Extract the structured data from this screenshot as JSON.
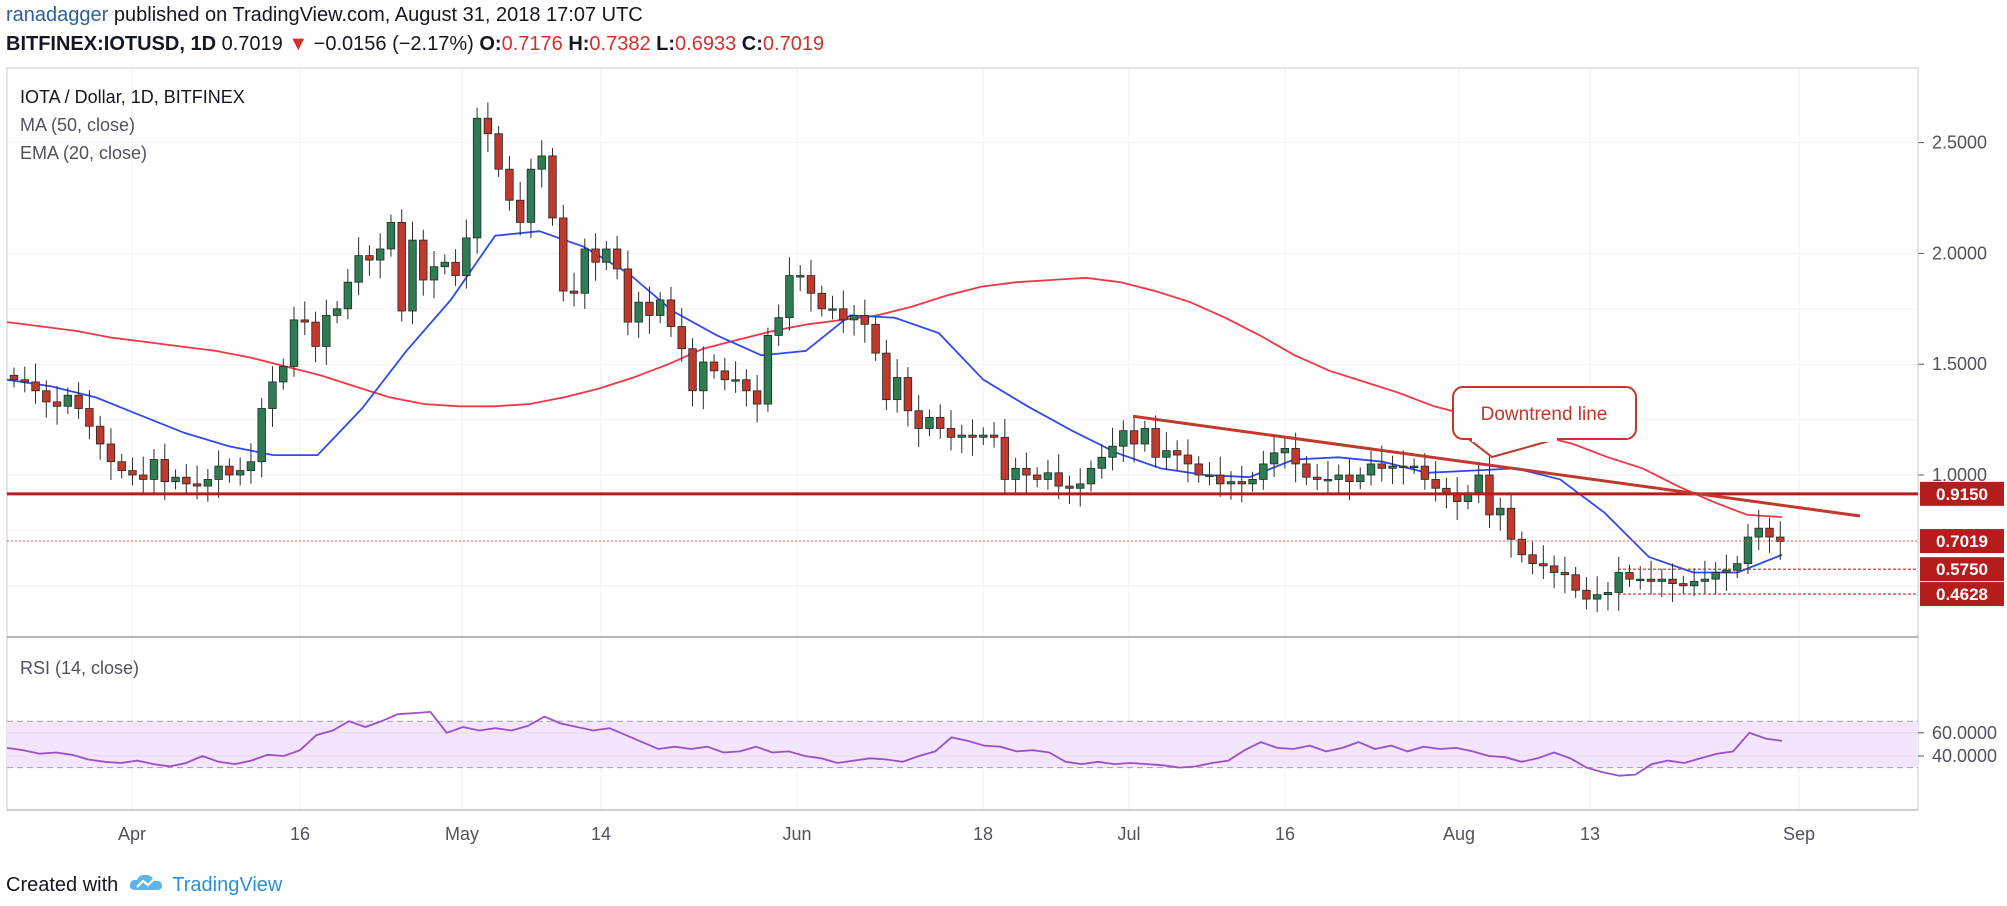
{
  "header": {
    "author": "ranadagger",
    "published_text": "published on TradingView.com, August 31, 2018 17:07 UTC",
    "symbol": "BITFINEX:IOTUSD, 1D",
    "last": "0.7019",
    "change": "−0.0156 (−2.17%)",
    "o_label": "O:",
    "o": "0.7176",
    "h_label": "H:",
    "h": "0.7382",
    "l_label": "L:",
    "l": "0.6933",
    "c_label": "C:",
    "c": "0.7019"
  },
  "legend": {
    "title": "IOTA / Dollar, 1D, BITFINEX",
    "ma": "MA (50, close)",
    "ema": "EMA (20, close)",
    "rsi": "RSI (14, close)"
  },
  "annotation": {
    "downtrend_label": "Downtrend line"
  },
  "footer": {
    "created_with": "Created with",
    "brand": "TradingView"
  },
  "colors": {
    "up": "#2e7d52",
    "down": "#c0392b",
    "ma50": "#f23645",
    "ema20": "#3049f2",
    "rsi": "#9c4fc8",
    "support": "#b71c1c",
    "axis_text": "#50535e"
  },
  "chart_data": [
    {
      "type": "candlestick",
      "title": "IOTA / Dollar, 1D, BITFINEX",
      "x_ticks": [
        "Apr",
        "16",
        "May",
        "14",
        "Jun",
        "18",
        "Jul",
        "16",
        "Aug",
        "13",
        "Sep"
      ],
      "y_ticks": [
        "2.5000",
        "2.0000",
        "1.5000",
        "1.0000"
      ],
      "price_labels": [
        {
          "label": "0.9150",
          "value": 0.915
        },
        {
          "label": "0.7019",
          "value": 0.7019
        },
        {
          "label": "0.5750",
          "value": 0.575
        },
        {
          "label": "0.4628",
          "value": 0.4628
        }
      ],
      "close": [
        1.43,
        1.42,
        1.38,
        1.33,
        1.31,
        1.36,
        1.3,
        1.22,
        1.14,
        1.06,
        1.02,
        1.0,
        0.98,
        1.07,
        0.97,
        0.99,
        0.96,
        0.95,
        0.98,
        1.04,
        1.0,
        1.02,
        1.06,
        1.3,
        1.42,
        1.49,
        1.7,
        1.69,
        1.58,
        1.72,
        1.75,
        1.87,
        1.99,
        1.97,
        2.02,
        2.14,
        1.74,
        2.06,
        1.88,
        1.94,
        1.96,
        1.9,
        2.07,
        2.61,
        2.54,
        2.38,
        2.24,
        2.14,
        2.38,
        2.44,
        2.16,
        1.83,
        1.82,
        2.02,
        1.96,
        2.02,
        1.93,
        1.69,
        1.78,
        1.72,
        1.79,
        1.67,
        1.57,
        1.38,
        1.51,
        1.47,
        1.43,
        1.43,
        1.38,
        1.32,
        1.63,
        1.71,
        1.9,
        1.9,
        1.82,
        1.75,
        1.75,
        1.7,
        1.72,
        1.68,
        1.55,
        1.34,
        1.44,
        1.29,
        1.21,
        1.26,
        1.21,
        1.17,
        1.18,
        1.17,
        1.18,
        1.17,
        0.98,
        1.03,
        1.0,
        0.98,
        1.01,
        0.95,
        0.94,
        0.96,
        1.03,
        1.08,
        1.13,
        1.2,
        1.14,
        1.21,
        1.08,
        1.11,
        1.09,
        1.05,
        1.0,
        1.0,
        0.96,
        0.97,
        0.96,
        0.98,
        1.05,
        1.1,
        1.12,
        1.05,
        0.99,
        0.98,
        0.98,
        1.0,
        0.97,
        1.0,
        1.05,
        1.03,
        1.04,
        1.04,
        1.04,
        0.98,
        0.94,
        0.92,
        0.88,
        0.92,
        1.0,
        0.82,
        0.85,
        0.71,
        0.64,
        0.6,
        0.59,
        0.56,
        0.55,
        0.48,
        0.44,
        0.46,
        0.47,
        0.56,
        0.53,
        0.53,
        0.52,
        0.53,
        0.51,
        0.5,
        0.52,
        0.53,
        0.56,
        0.57,
        0.6,
        0.72,
        0.76,
        0.72,
        0.7
      ],
      "ma50": [
        1.69,
        1.67,
        1.65,
        1.62,
        1.6,
        1.58,
        1.56,
        1.53,
        1.49,
        1.45,
        1.4,
        1.35,
        1.32,
        1.31,
        1.31,
        1.32,
        1.35,
        1.39,
        1.44,
        1.5,
        1.57,
        1.61,
        1.65,
        1.68,
        1.7,
        1.72,
        1.76,
        1.81,
        1.85,
        1.87,
        1.88,
        1.89,
        1.87,
        1.83,
        1.78,
        1.71,
        1.63,
        1.54,
        1.47,
        1.42,
        1.37,
        1.31,
        1.27,
        1.23,
        1.18,
        1.14,
        1.08,
        1.03,
        0.95,
        0.88,
        0.82,
        0.81
      ],
      "ema20": [
        1.43,
        1.4,
        1.35,
        1.27,
        1.19,
        1.13,
        1.09,
        1.09,
        1.3,
        1.56,
        1.79,
        2.08,
        2.1,
        2.03,
        1.91,
        1.74,
        1.63,
        1.54,
        1.56,
        1.72,
        1.71,
        1.64,
        1.43,
        1.31,
        1.2,
        1.1,
        1.03,
        1.0,
        0.99,
        1.07,
        1.08,
        1.06,
        1.01,
        1.02,
        1.03,
        0.98,
        0.83,
        0.63,
        0.56,
        0.56,
        0.64
      ],
      "rsi": [
        47,
        45,
        42,
        43,
        41,
        37,
        35,
        34,
        36,
        33,
        31,
        34,
        40,
        35,
        33,
        36,
        41,
        40,
        45,
        58,
        62,
        70,
        65,
        70,
        76,
        77,
        78,
        60,
        65,
        62,
        64,
        62,
        66,
        74,
        68,
        65,
        62,
        64,
        58,
        52,
        46,
        48,
        46,
        48,
        43,
        44,
        48,
        43,
        44,
        40,
        38,
        34,
        36,
        38,
        37,
        35,
        40,
        44,
        56,
        53,
        49,
        48,
        44,
        45,
        43,
        35,
        33,
        35,
        33,
        34,
        33,
        32,
        30,
        31,
        34,
        36,
        45,
        52,
        47,
        46,
        49,
        44,
        47,
        52,
        46,
        49,
        44,
        48,
        46,
        47,
        44,
        40,
        39,
        35,
        38,
        43,
        38,
        30,
        26,
        23,
        24,
        33,
        36,
        34,
        38,
        42,
        44,
        60,
        55,
        53
      ],
      "rsi_ticks": [
        "60.0000",
        "40.0000"
      ]
    }
  ]
}
